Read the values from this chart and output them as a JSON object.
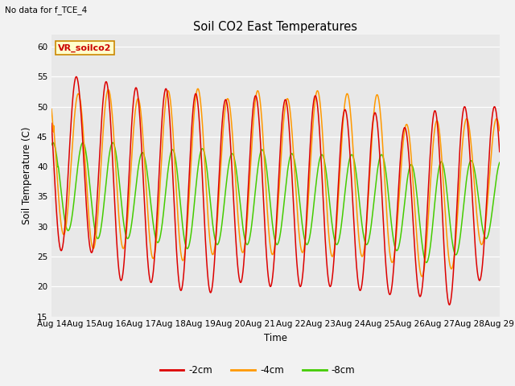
{
  "title": "Soil CO2 East Temperatures",
  "subtitle": "No data for f_TCE_4",
  "vr_label": "VR_soilco2",
  "xlabel": "Time",
  "ylabel": "Soil Temperature (C)",
  "ylim": [
    15,
    62
  ],
  "yticks": [
    15,
    20,
    25,
    30,
    35,
    40,
    45,
    50,
    55,
    60
  ],
  "x_labels": [
    "Aug 14",
    "Aug 15",
    "Aug 16",
    "Aug 17",
    "Aug 18",
    "Aug 19",
    "Aug 20",
    "Aug 21",
    "Aug 22",
    "Aug 23",
    "Aug 24",
    "Aug 25",
    "Aug 26",
    "Aug 27",
    "Aug 28",
    "Aug 29"
  ],
  "bg_color": "#e8e8e8",
  "fig_color": "#f2f2f2",
  "line_colors": {
    "2cm": "#dd0000",
    "4cm": "#ff9900",
    "8cm": "#44cc00"
  },
  "legend_labels": [
    "-2cm",
    "-4cm",
    "-8cm"
  ],
  "n_days": 15,
  "depth_2cm_highs": [
    55,
    55,
    54,
    53,
    53,
    52,
    51,
    52,
    51,
    52,
    49,
    49,
    46,
    50,
    50
  ],
  "depth_2cm_lows": [
    25,
    28,
    21,
    21,
    20,
    18,
    21,
    20,
    20,
    20,
    20,
    18,
    20,
    15,
    21
  ],
  "depth_4cm_highs": [
    53,
    52,
    53,
    51,
    53,
    53,
    51,
    53,
    51,
    53,
    52,
    52,
    46,
    48,
    48
  ],
  "depth_4cm_lows": [
    30,
    26,
    27,
    25,
    24,
    25,
    26,
    25,
    26,
    25,
    25,
    25,
    22,
    21,
    27
  ],
  "depth_8cm_highs": [
    44,
    44,
    44,
    42,
    43,
    43,
    42,
    43,
    42,
    42,
    42,
    42,
    40,
    41,
    41
  ],
  "depth_8cm_lows": [
    30,
    28,
    28,
    28,
    26,
    27,
    27,
    27,
    27,
    27,
    27,
    27,
    24,
    24,
    28
  ],
  "lag_2cm": 0.0,
  "lag_4cm": 0.07,
  "lag_8cm": 0.22,
  "peak_phase": 0.58
}
